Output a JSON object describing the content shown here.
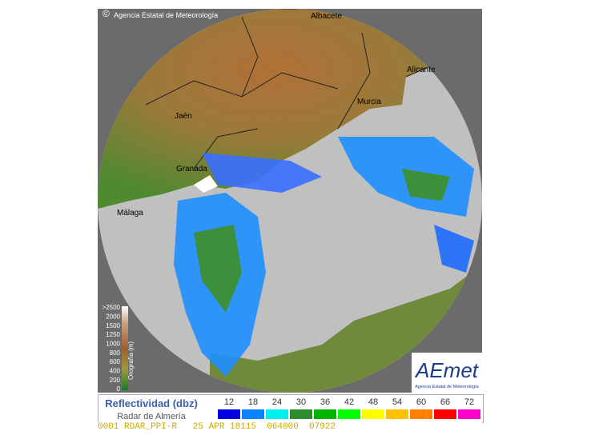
{
  "header": {
    "copyright": "Agencia Estatal de Meteorología"
  },
  "cities": [
    {
      "label": "Albacete"
    },
    {
      "label": "Alicante"
    },
    {
      "label": "Murcia"
    },
    {
      "label": "Jaén"
    },
    {
      "label": "Granada"
    },
    {
      "label": "Málaga"
    }
  ],
  "elevation_legend": {
    "title": "Orografía (m)",
    "ticks": [
      ">2500",
      "2000",
      "1500",
      "1250",
      "1000",
      "800",
      "600",
      "400",
      "200",
      "0"
    ]
  },
  "logo": {
    "brand": "AEmet",
    "subtitle": "Agencia Estatal de Meteorología"
  },
  "reflectivity_legend": {
    "title": "Reflectividad (dbz)",
    "subtitle": "Radar de Almería",
    "levels": [
      {
        "value": 12,
        "color": "#0000e0"
      },
      {
        "value": 18,
        "color": "#0a82ff"
      },
      {
        "value": 24,
        "color": "#00f0f0"
      },
      {
        "value": 30,
        "color": "#2e8b2e"
      },
      {
        "value": 36,
        "color": "#00b400"
      },
      {
        "value": 42,
        "color": "#00ff00"
      },
      {
        "value": 48,
        "color": "#ffff00"
      },
      {
        "value": 54,
        "color": "#ffc000"
      },
      {
        "value": 60,
        "color": "#ff8000"
      },
      {
        "value": 66,
        "color": "#ff0000"
      },
      {
        "value": 72,
        "color": "#ff00c8"
      }
    ]
  },
  "footer": {
    "status": "0001 RDAR_PPI-R   25 APR 18115  064000  07922"
  }
}
